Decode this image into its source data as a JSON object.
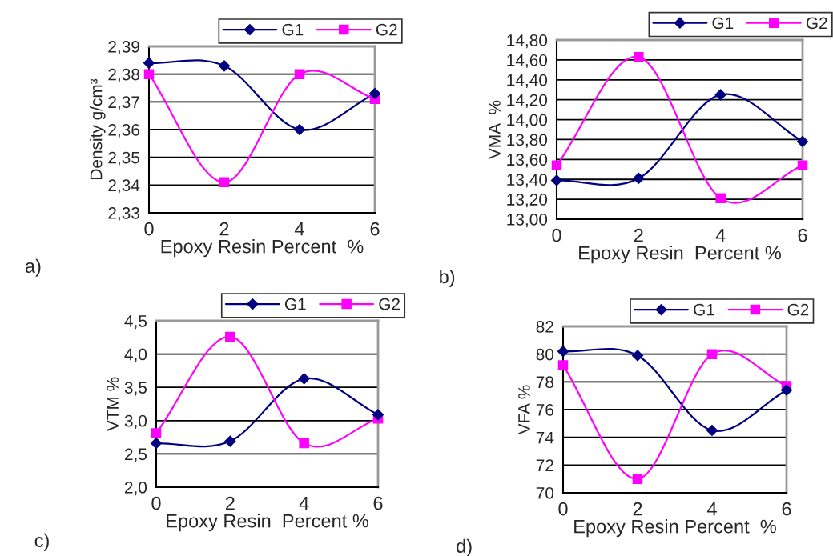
{
  "chart_data": [
    {
      "type": "line",
      "ylabel": "Density g/cm³",
      "xlabel": "Epoxy Resin Percent  %",
      "annotations": [
        "a)"
      ],
      "x": [
        0,
        2,
        4,
        6
      ],
      "xlim": [
        0,
        6
      ],
      "xticks": [
        0,
        2,
        4,
        6
      ],
      "ylim": [
        2.33,
        2.39
      ],
      "yticks": [
        {
          "value": 2.33,
          "label": "2,33"
        },
        {
          "value": 2.34,
          "label": "2,34"
        },
        {
          "value": 2.35,
          "label": "2,35"
        },
        {
          "value": 2.36,
          "label": "2,36"
        },
        {
          "value": 2.37,
          "label": "2,37"
        },
        {
          "value": 2.38,
          "label": "2,38"
        },
        {
          "value": 2.39,
          "label": "2,39"
        }
      ],
      "grid": "y",
      "legend": "top right",
      "series": [
        {
          "name": "G1",
          "color": "#000080",
          "marker": "diamond",
          "values": [
            2.384,
            2.383,
            2.36,
            2.373
          ]
        },
        {
          "name": "G2",
          "color": "#ff00ff",
          "marker": "square",
          "values": [
            2.38,
            2.341,
            2.38,
            2.371
          ]
        }
      ]
    },
    {
      "type": "line",
      "ylabel": "VMA  %",
      "xlabel": "Epoxy Resin  Percent %",
      "annotations": [
        "b)"
      ],
      "x": [
        0,
        2,
        4,
        6
      ],
      "xlim": [
        0,
        6
      ],
      "xticks": [
        0,
        2,
        4,
        6
      ],
      "ylim": [
        13.0,
        14.8
      ],
      "yticks": [
        {
          "value": 13.0,
          "label": "13,00"
        },
        {
          "value": 13.2,
          "label": "13,20"
        },
        {
          "value": 13.4,
          "label": "13,40"
        },
        {
          "value": 13.6,
          "label": "13,60"
        },
        {
          "value": 13.8,
          "label": "13,80"
        },
        {
          "value": 14.0,
          "label": "14,00"
        },
        {
          "value": 14.2,
          "label": "14,20"
        },
        {
          "value": 14.4,
          "label": "14,40"
        },
        {
          "value": 14.6,
          "label": "14,60"
        },
        {
          "value": 14.8,
          "label": "14,80"
        }
      ],
      "grid": "y",
      "legend": "top right",
      "series": [
        {
          "name": "G1",
          "color": "#000080",
          "marker": "diamond",
          "values": [
            13.39,
            13.41,
            14.25,
            13.78
          ]
        },
        {
          "name": "G2",
          "color": "#ff00ff",
          "marker": "square",
          "values": [
            13.54,
            14.63,
            13.21,
            13.54
          ]
        }
      ]
    },
    {
      "type": "line",
      "ylabel": "VTM %",
      "xlabel": "Epoxy Resin  Percent %",
      "annotations": [
        "c)"
      ],
      "x": [
        0,
        2,
        4,
        6
      ],
      "xlim": [
        0,
        6
      ],
      "xticks": [
        0,
        2,
        4,
        6
      ],
      "ylim": [
        2.0,
        4.5
      ],
      "yticks": [
        {
          "value": 2.0,
          "label": "2,0"
        },
        {
          "value": 2.5,
          "label": "2,5"
        },
        {
          "value": 3.0,
          "label": "3,0"
        },
        {
          "value": 3.5,
          "label": "3,5"
        },
        {
          "value": 4.0,
          "label": "4,0"
        },
        {
          "value": 4.5,
          "label": "4,5"
        }
      ],
      "grid": "y",
      "legend": "top right",
      "series": [
        {
          "name": "G1",
          "color": "#000080",
          "marker": "diamond",
          "values": [
            2.66,
            2.69,
            3.63,
            3.09
          ]
        },
        {
          "name": "G2",
          "color": "#ff00ff",
          "marker": "square",
          "values": [
            2.81,
            4.26,
            2.66,
            3.03
          ]
        }
      ]
    },
    {
      "type": "line",
      "ylabel": "VFA %",
      "xlabel": "Epoxy Resin Percent  %",
      "annotations": [
        "d)"
      ],
      "x": [
        0,
        2,
        4,
        6
      ],
      "xlim": [
        0,
        6
      ],
      "xticks": [
        0,
        2,
        4,
        6
      ],
      "ylim": [
        70,
        82
      ],
      "yticks": [
        70,
        72,
        74,
        76,
        78,
        80,
        82
      ],
      "grid": "y",
      "legend": "top right",
      "series": [
        {
          "name": "G1",
          "color": "#000080",
          "marker": "diamond",
          "values": [
            80.2,
            79.9,
            74.5,
            77.4
          ]
        },
        {
          "name": "G2",
          "color": "#ff00ff",
          "marker": "square",
          "values": [
            79.2,
            71.0,
            80.0,
            77.7
          ]
        }
      ]
    }
  ]
}
